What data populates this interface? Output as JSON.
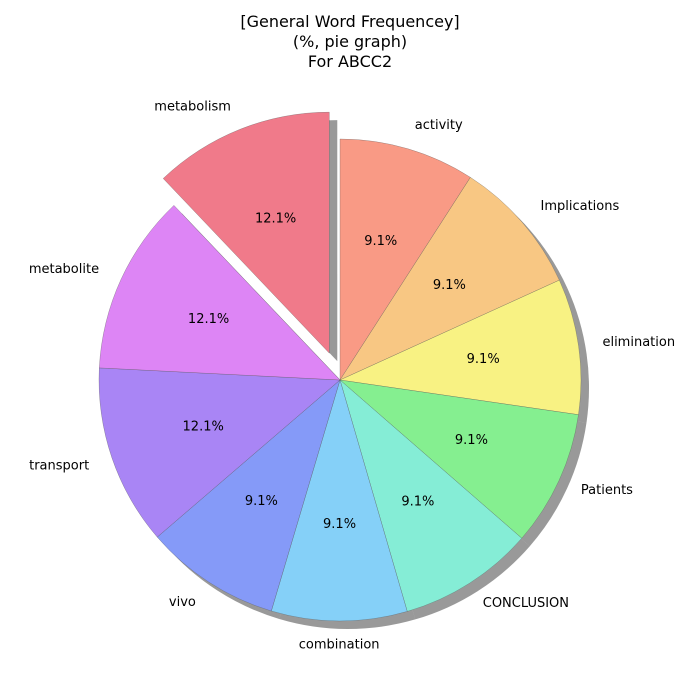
{
  "chart_data": {
    "type": "pie",
    "title_lines": [
      "[General Word Frequencey]",
      "(%, pie graph)",
      "For ABCC2"
    ],
    "slices": [
      {
        "label": "activity",
        "value": 9.1,
        "pct_label": "9.1%",
        "color": "#f99a85"
      },
      {
        "label": "Implications",
        "value": 9.1,
        "pct_label": "9.1%",
        "color": "#f8c783"
      },
      {
        "label": "elimination",
        "value": 9.1,
        "pct_label": "9.1%",
        "color": "#f8f283"
      },
      {
        "label": "Patients",
        "value": 9.1,
        "pct_label": "9.1%",
        "color": "#85ef90"
      },
      {
        "label": "CONCLUSION",
        "value": 9.1,
        "pct_label": "9.1%",
        "color": "#85edd6"
      },
      {
        "label": "combination",
        "value": 9.1,
        "pct_label": "9.1%",
        "color": "#85d0f8"
      },
      {
        "label": "vivo",
        "value": 9.1,
        "pct_label": "9.1%",
        "color": "#859af8"
      },
      {
        "label": "transport",
        "value": 12.1,
        "pct_label": "12.1%",
        "color": "#a985f5"
      },
      {
        "label": "metabolite",
        "value": 12.1,
        "pct_label": "12.1%",
        "color": "#dd85f5"
      },
      {
        "label": "metabolism",
        "value": 12.1,
        "pct_label": "12.1%",
        "color": "#f07a8a",
        "exploded": true
      }
    ],
    "shadow": true,
    "start": "top",
    "direction": "clockwise"
  }
}
